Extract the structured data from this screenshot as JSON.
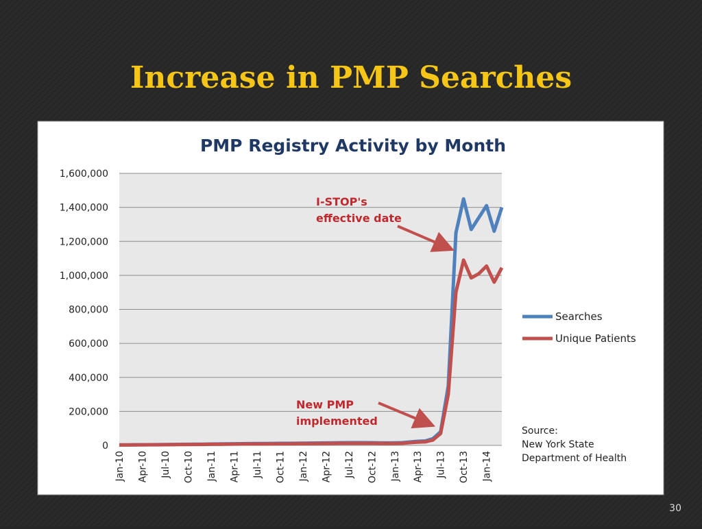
{
  "slide": {
    "title": "Increase in PMP Searches",
    "page_number": "30"
  },
  "chart_data": {
    "type": "line",
    "title": "PMP Registry Activity by Month",
    "categories": [
      "Jan-10",
      null,
      null,
      "Apr-10",
      null,
      null,
      "Jul-10",
      null,
      null,
      "Oct-10",
      null,
      null,
      "Jan-11",
      null,
      null,
      "Apr-11",
      null,
      null,
      "Jul-11",
      null,
      null,
      "Oct-11",
      null,
      null,
      "Jan-12",
      null,
      null,
      "Apr-12",
      null,
      null,
      "Jul-12",
      null,
      null,
      "Oct-12",
      null,
      null,
      "Jan-13",
      null,
      null,
      "Apr-13",
      null,
      null,
      "Jul-13",
      null,
      null,
      "Oct-13",
      null,
      null,
      "Jan-14",
      null,
      null
    ],
    "series": [
      {
        "name": "Searches",
        "color": "#4f81bd",
        "values": [
          3000,
          3000,
          3500,
          4000,
          4000,
          4500,
          5000,
          5500,
          6000,
          6500,
          7000,
          7000,
          8000,
          8500,
          9000,
          9500,
          10000,
          10500,
          11000,
          11000,
          11500,
          12000,
          12000,
          12500,
          13000,
          13500,
          14000,
          14500,
          15000,
          15500,
          16000,
          16000,
          16000,
          15500,
          15000,
          14500,
          15000,
          16000,
          20000,
          24000,
          26000,
          40000,
          80000,
          350000,
          1250000,
          1450000,
          1270000,
          1340000,
          1410000,
          1260000,
          1400000
        ]
      },
      {
        "name": "Unique Patients",
        "color": "#c0504d",
        "values": [
          2500,
          2500,
          3000,
          3200,
          3300,
          3600,
          4000,
          4400,
          4800,
          5200,
          5600,
          5600,
          6400,
          6800,
          7200,
          7600,
          8000,
          8400,
          8800,
          8800,
          9200,
          9600,
          9600,
          10000,
          10400,
          10800,
          11200,
          11600,
          12000,
          12400,
          12800,
          12800,
          12800,
          12400,
          12000,
          11600,
          12000,
          12800,
          16000,
          19000,
          21000,
          32000,
          70000,
          300000,
          900000,
          1090000,
          985000,
          1010000,
          1055000,
          960000,
          1045000
        ]
      }
    ],
    "ylim": [
      0,
      1600000
    ],
    "yticks": [
      0,
      {
        "value": 200000,
        "label": "200,000"
      },
      {
        "value": 400000,
        "label": "400,000"
      },
      {
        "value": 600000,
        "label": "600,000"
      },
      {
        "value": 800000,
        "label": "800,000"
      },
      {
        "value": 1000000,
        "label": "1,000,000"
      },
      {
        "value": 1200000,
        "label": "1,200,000"
      },
      {
        "value": 1400000,
        "label": "1,400,000"
      },
      {
        "value": 1600000,
        "label": "1,600,000"
      }
    ],
    "grid": true,
    "legend": "right",
    "annotations": [
      {
        "lines": [
          "I-STOP's",
          "effective date"
        ],
        "color": "#c0282d"
      },
      {
        "lines": [
          "New PMP",
          "implemented"
        ],
        "color": "#c0282d"
      }
    ],
    "source": [
      "Source:",
      "New York State",
      "Department of Health"
    ]
  }
}
